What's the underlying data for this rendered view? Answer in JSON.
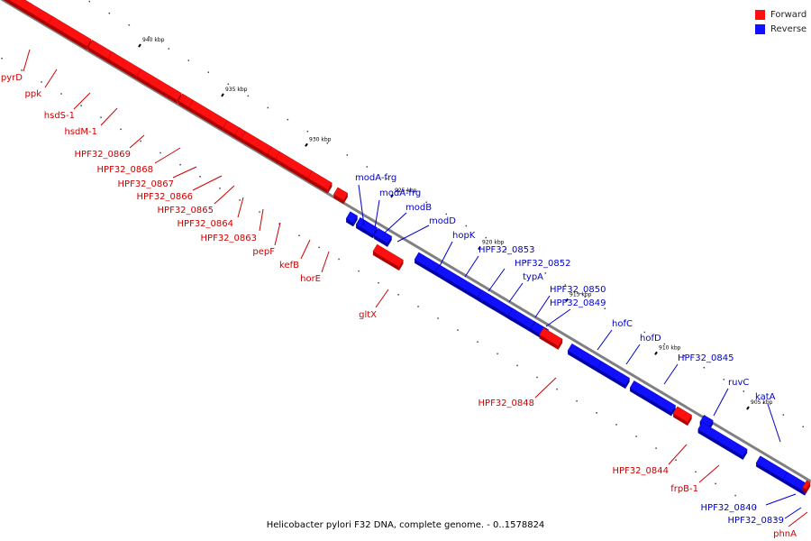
{
  "caption": "Helicobacter pylori F32 DNA, complete genome. - 0..1578824",
  "colors": {
    "forward": "#ff1010",
    "forward_dark": "#b00000",
    "reverse": "#1010ff",
    "reverse_dark": "#0000a8",
    "forward_label": "#cc0000",
    "reverse_label": "#0000cc",
    "backbone": "#808080"
  },
  "legend": {
    "forward": "Forward",
    "reverse": "Reverse"
  },
  "ticks": [
    "945 kbp",
    "940 kbp",
    "935 kbp",
    "930 kbp",
    "925 kbp",
    "920 kbp",
    "915 kbp",
    "910 kbp",
    "905 kbp"
  ],
  "genes": [
    {
      "name": "pyrD",
      "strand": "forward"
    },
    {
      "name": "ppk",
      "strand": "forward"
    },
    {
      "name": "hsdS-1",
      "strand": "forward"
    },
    {
      "name": "hsdM-1",
      "strand": "forward"
    },
    {
      "name": "HPF32_0869",
      "strand": "forward"
    },
    {
      "name": "HPF32_0868",
      "strand": "forward"
    },
    {
      "name": "HPF32_0867",
      "strand": "forward"
    },
    {
      "name": "HPF32_0866",
      "strand": "forward"
    },
    {
      "name": "HPF32_0865",
      "strand": "forward"
    },
    {
      "name": "HPF32_0864",
      "strand": "forward"
    },
    {
      "name": "HPF32_0863",
      "strand": "forward"
    },
    {
      "name": "pepF",
      "strand": "forward"
    },
    {
      "name": "kefB",
      "strand": "forward"
    },
    {
      "name": "horE",
      "strand": "forward"
    },
    {
      "name": "gltX",
      "strand": "forward"
    },
    {
      "name": "modA-frg",
      "strand": "reverse"
    },
    {
      "name": "modA-frg",
      "strand": "reverse"
    },
    {
      "name": "modB",
      "strand": "reverse"
    },
    {
      "name": "modD",
      "strand": "reverse"
    },
    {
      "name": "hopK",
      "strand": "reverse"
    },
    {
      "name": "HPF32_0853",
      "strand": "reverse"
    },
    {
      "name": "HPF32_0852",
      "strand": "reverse"
    },
    {
      "name": "typA",
      "strand": "reverse"
    },
    {
      "name": "HPF32_0850",
      "strand": "reverse"
    },
    {
      "name": "HPF32_0849",
      "strand": "reverse"
    },
    {
      "name": "hofC",
      "strand": "reverse"
    },
    {
      "name": "hofD",
      "strand": "reverse"
    },
    {
      "name": "HPF32_0845",
      "strand": "reverse"
    },
    {
      "name": "ruvC",
      "strand": "reverse"
    },
    {
      "name": "katA",
      "strand": "reverse"
    },
    {
      "name": "HPF32_0848",
      "strand": "forward"
    },
    {
      "name": "HPF32_0844",
      "strand": "forward"
    },
    {
      "name": "frpB-1",
      "strand": "forward"
    },
    {
      "name": "HPF32_0840",
      "strand": "reverse"
    },
    {
      "name": "HPF32_0839",
      "strand": "reverse"
    },
    {
      "name": "phnA",
      "strand": "forward"
    }
  ]
}
